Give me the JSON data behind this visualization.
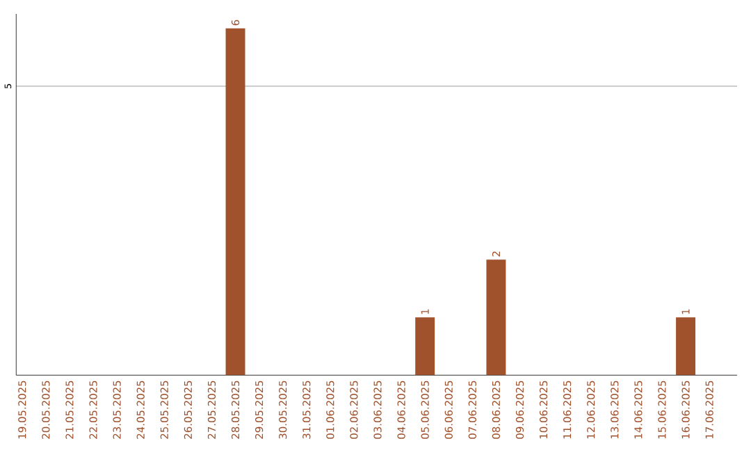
{
  "chart_data": {
    "type": "bar",
    "categories": [
      "19.05.2025",
      "20.05.2025",
      "21.05.2025",
      "22.05.2025",
      "23.05.2025",
      "24.05.2025",
      "25.05.2025",
      "26.05.2025",
      "27.05.2025",
      "28.05.2025",
      "29.05.2025",
      "30.05.2025",
      "31.05.2025",
      "01.06.2025",
      "02.06.2025",
      "03.06.2025",
      "04.06.2025",
      "05.06.2025",
      "06.06.2025",
      "07.06.2025",
      "08.06.2025",
      "09.06.2025",
      "10.06.2025",
      "11.06.2025",
      "12.06.2025",
      "13.06.2025",
      "14.06.2025",
      "15.06.2025",
      "16.06.2025",
      "17.06.2025"
    ],
    "values": [
      0,
      0,
      0,
      0,
      0,
      0,
      0,
      0,
      0,
      6,
      0,
      0,
      0,
      0,
      0,
      0,
      0,
      1,
      0,
      0,
      2,
      0,
      0,
      0,
      0,
      0,
      0,
      0,
      1,
      0
    ],
    "value_labels": [
      null,
      null,
      null,
      null,
      null,
      null,
      null,
      null,
      null,
      "6",
      null,
      null,
      null,
      null,
      null,
      null,
      null,
      "1",
      null,
      null,
      "2",
      null,
      null,
      null,
      null,
      null,
      null,
      null,
      "1",
      null
    ],
    "color": "#a0522d",
    "ylim": [
      0,
      6.25
    ],
    "yticks": [
      5
    ],
    "grid": "y"
  }
}
